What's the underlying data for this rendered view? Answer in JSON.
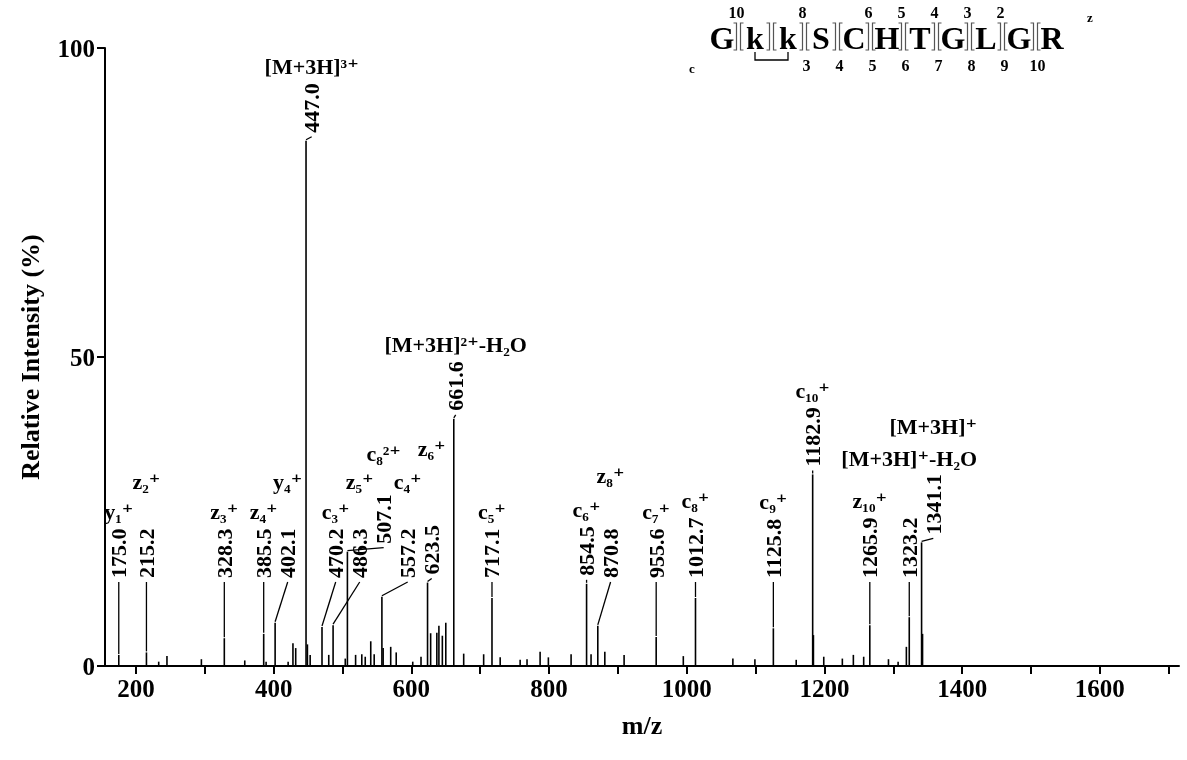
{
  "chart_data": {
    "type": "bar",
    "xlabel": "m/z",
    "ylabel": "Relative Intensity (%)",
    "color": "#000000",
    "x": [
      175.0,
      215.2,
      233,
      245,
      295,
      328.3,
      358,
      385.5,
      389,
      402.1,
      421,
      428,
      432,
      447.0,
      449,
      453,
      470.2,
      480,
      486.3,
      504,
      507.1,
      519,
      528,
      533,
      541,
      546,
      557.2,
      559,
      570,
      578,
      602,
      614,
      623.5,
      628,
      637,
      640,
      645,
      650,
      661.6,
      676,
      705,
      717.1,
      729,
      758,
      768,
      787,
      799,
      832,
      854.5,
      861,
      870.8,
      881,
      909,
      955.6,
      995,
      1012.7,
      1067,
      1099,
      1125.8,
      1159,
      1182.9,
      1184,
      1199,
      1226,
      1242,
      1257,
      1265.9,
      1293,
      1307,
      1319,
      1323.2,
      1341.1,
      1342.5
    ],
    "values": [
      1.8,
      2.2,
      0.7,
      1.6,
      1.1,
      4.5,
      0.9,
      5.2,
      0.7,
      7.0,
      0.7,
      3.7,
      2.9,
      85,
      3.5,
      1.8,
      6.3,
      1.8,
      6.6,
      1.2,
      18.5,
      1.8,
      1.9,
      1.5,
      4.0,
      1.9,
      11.2,
      2.9,
      3.1,
      2.2,
      0.7,
      1.5,
      13.5,
      5.3,
      5.4,
      6.5,
      4.9,
      7.0,
      40,
      2.0,
      1.9,
      11.0,
      1.4,
      1.0,
      1.1,
      2.3,
      1.4,
      1.9,
      13.3,
      1.9,
      6.5,
      2.3,
      1.8,
      4.7,
      1.6,
      11.0,
      1.2,
      1.1,
      6.1,
      1.0,
      31,
      5.0,
      1.5,
      1.2,
      1.8,
      1.5,
      6.6,
      1.1,
      0.7,
      3.1,
      7.9,
      20,
      5.2
    ],
    "xlim": [
      155,
      1715
    ],
    "ylim": [
      0,
      100
    ],
    "xticks": [
      200,
      {
        "value": 300,
        "label": null
      },
      400,
      {
        "value": 500,
        "label": null
      },
      600,
      {
        "value": 700,
        "label": null
      },
      800,
      {
        "value": 900,
        "label": null
      },
      1000,
      {
        "value": 1100,
        "label": null
      },
      1200,
      {
        "value": 1300,
        "label": null
      },
      1400,
      {
        "value": 1500,
        "label": null
      },
      1600,
      {
        "value": 1700,
        "label": null
      }
    ],
    "yticks": [
      0,
      50,
      100
    ],
    "annotations": [
      "c",
      "G k k S C H T G L G R",
      "z",
      "10 8 6 5 4 3 2",
      "3 4 5 6 7 8 9 10",
      "y₁⁺",
      "z₂⁺",
      "z₃⁺",
      "z₄⁺",
      "y₄⁺",
      "[M+3H]³⁺",
      "c₃⁺",
      "z₅⁺",
      "c₈²⁺",
      "c₄⁺",
      "z₆⁺",
      "[M+3H]²⁺-H₂O",
      "c₅⁺",
      "c₆⁺",
      "z₈⁺",
      "c₇⁺",
      "c₈⁺",
      "c₉⁺",
      "c₁₀⁺",
      "z₁₀⁺",
      "[M+3H]⁺-H₂O",
      "[M+3H]⁺",
      {
        "text": "175.0",
        "x": 175.0,
        "y": 1.8
      },
      {
        "text": "215.2",
        "x": 215.2,
        "y": 2.2
      },
      {
        "text": "328.3",
        "x": 328.3,
        "y": 4.5
      },
      {
        "text": "385.5",
        "x": 385.5,
        "y": 5.2
      },
      {
        "text": "402.1",
        "x": 402.1,
        "y": 7.0
      },
      {
        "text": "447.0",
        "x": 447.0,
        "y": 85
      },
      {
        "text": "470.2",
        "x": 470.2,
        "y": 6.3
      },
      {
        "text": "486.3",
        "x": 486.3,
        "y": 6.6
      },
      {
        "text": "507.1",
        "x": 507.1,
        "y": 18.5
      },
      {
        "text": "557.2",
        "x": 557.2,
        "y": 11.2
      },
      {
        "text": "623.5",
        "x": 623.5,
        "y": 13.5
      },
      {
        "text": "661.6",
        "x": 661.6,
        "y": 40
      },
      {
        "text": "717.1",
        "x": 717.1,
        "y": 11.0
      },
      {
        "text": "854.5",
        "x": 854.5,
        "y": 13.3
      },
      {
        "text": "870.8",
        "x": 870.8,
        "y": 6.5
      },
      {
        "text": "955.6",
        "x": 955.6,
        "y": 4.7
      },
      {
        "text": "1012.7",
        "x": 1012.7,
        "y": 11.0
      },
      {
        "text": "1125.8",
        "x": 1125.8,
        "y": 6.1
      },
      {
        "text": "1182.9",
        "x": 1182.9,
        "y": 31
      },
      {
        "text": "1265.9",
        "x": 1265.9,
        "y": 6.6
      },
      {
        "text": "1323.2",
        "x": 1323.2,
        "y": 7.9
      },
      {
        "text": "1341.1",
        "x": 1341.1,
        "y": 20
      }
    ]
  }
}
